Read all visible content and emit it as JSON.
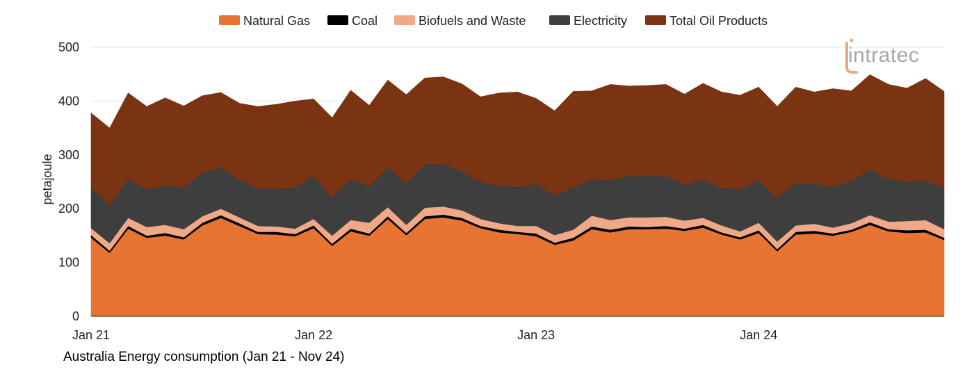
{
  "chart_data": {
    "type": "area",
    "stacked": true,
    "caption": "Australia Energy consumption (Jan 21 - Nov 24)",
    "ylabel": "petajoule",
    "xlabel": "",
    "ylim": [
      0,
      500
    ],
    "yticks": [
      0,
      100,
      200,
      300,
      400,
      500
    ],
    "xtick_labels": [
      {
        "index": 0,
        "label": "Jan 21"
      },
      {
        "index": 12,
        "label": "Jan 22"
      },
      {
        "index": 24,
        "label": "Jan 23"
      },
      {
        "index": 36,
        "label": "Jan 24"
      }
    ],
    "x_count": 47,
    "legend_position": "top-center",
    "series": [
      {
        "name": "Natural Gas",
        "color": "#E87433",
        "values": [
          146,
          118,
          163,
          146,
          150,
          143,
          169,
          183,
          168,
          153,
          152,
          149,
          164,
          131,
          158,
          150,
          181,
          151,
          181,
          184,
          178,
          164,
          156,
          153,
          149,
          133,
          141,
          162,
          156,
          162,
          162,
          163,
          159,
          165,
          152,
          143,
          155,
          121,
          152,
          154,
          150,
          157,
          170,
          158,
          155,
          156,
          142
        ]
      },
      {
        "name": "Coal",
        "color": "#000000",
        "values": [
          5,
          4,
          5,
          4,
          5,
          4,
          5,
          5,
          5,
          4,
          5,
          4,
          5,
          4,
          5,
          4,
          5,
          4,
          5,
          5,
          5,
          4,
          5,
          4,
          5,
          4,
          5,
          5,
          5,
          5,
          4,
          5,
          4,
          5,
          4,
          4,
          5,
          4,
          5,
          5,
          4,
          4,
          5,
          4,
          5,
          5,
          4
        ]
      },
      {
        "name": "Biofuels and Waste",
        "color": "#F0A986",
        "values": [
          13,
          14,
          15,
          16,
          15,
          15,
          12,
          12,
          11,
          11,
          10,
          10,
          12,
          15,
          16,
          20,
          17,
          15,
          16,
          15,
          14,
          13,
          12,
          11,
          14,
          14,
          15,
          20,
          18,
          17,
          18,
          17,
          15,
          13,
          13,
          11,
          14,
          14,
          12,
          13,
          11,
          12,
          13,
          14,
          17,
          18,
          16
        ]
      },
      {
        "name": "Electricity",
        "color": "#3E3E3E",
        "values": [
          76,
          71,
          73,
          70,
          74,
          77,
          81,
          77,
          70,
          70,
          70,
          77,
          80,
          71,
          76,
          68,
          74,
          78,
          81,
          79,
          72,
          69,
          70,
          73,
          78,
          74,
          79,
          68,
          74,
          77,
          77,
          76,
          68,
          70,
          70,
          78,
          80,
          81,
          79,
          74,
          76,
          79,
          85,
          79,
          73,
          74,
          76
        ]
      },
      {
        "name": "Total Oil Products",
        "color": "#7B3411",
        "values": [
          138,
          143,
          159,
          154,
          162,
          152,
          143,
          139,
          142,
          152,
          157,
          160,
          143,
          148,
          165,
          150,
          162,
          164,
          160,
          162,
          163,
          158,
          172,
          176,
          159,
          157,
          178,
          164,
          178,
          167,
          168,
          170,
          167,
          180,
          178,
          175,
          172,
          170,
          178,
          171,
          182,
          167,
          176,
          176,
          174,
          189,
          180
        ]
      }
    ]
  },
  "logo": {
    "text": "intratec"
  }
}
